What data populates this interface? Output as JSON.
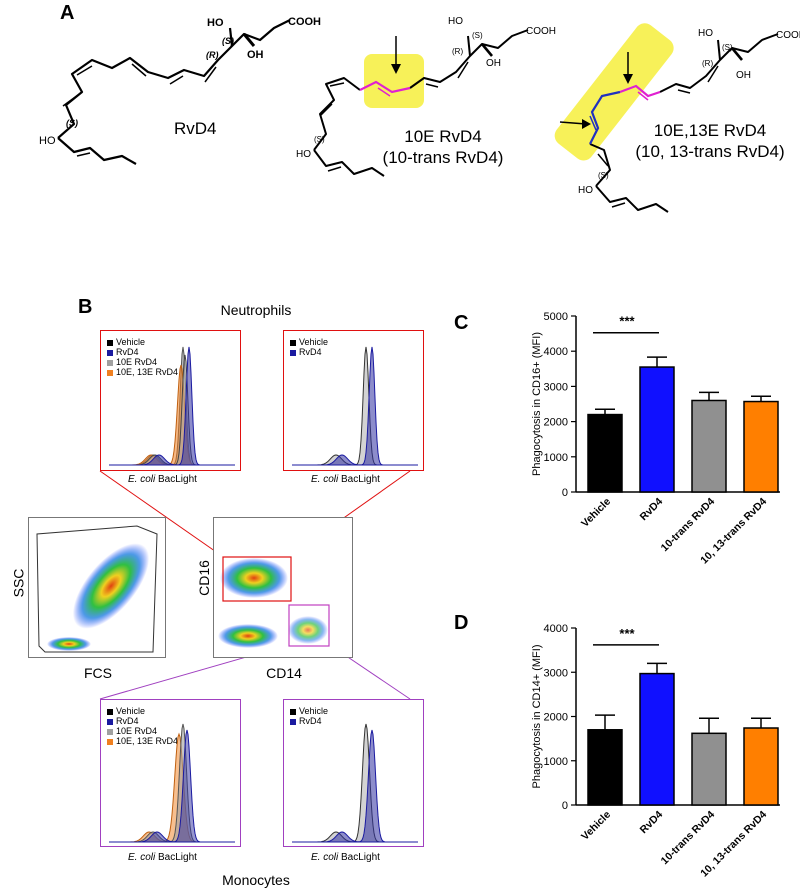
{
  "panels": {
    "A": "A",
    "B": "B",
    "C": "C",
    "D": "D"
  },
  "panel_a": {
    "compounds": [
      {
        "name_line1": "RvD4",
        "name_line2": ""
      },
      {
        "name_line1": "10E RvD4",
        "name_line2": "(10-trans RvD4)"
      },
      {
        "name_line1": "10E,13E RvD4",
        "name_line2": "(10, 13-trans RvD4)"
      }
    ],
    "groups": {
      "cooh": "COOH",
      "oh": "OH",
      "ho": "HO"
    },
    "stereo": {
      "S": "(S)",
      "R": "(R)"
    },
    "highlight_color": "#f6ee3c",
    "trans_bond_color_pink": "#e020d0",
    "trans_bond_color_blue": "#2030c0"
  },
  "panel_b": {
    "neutrophils_title": "Neutrophils",
    "monocytes_title": "Monocytes",
    "hist_xlabel_italic": "E. coli",
    "hist_xlabel_rest": " BacLight",
    "legend_full": [
      "Vehicle",
      "RvD4",
      "10E RvD4",
      "10E, 13E RvD4"
    ],
    "legend_short": [
      "Vehicle",
      "RvD4"
    ],
    "legend_colors": [
      "#000000",
      "#1a1aa0",
      "#a0a0a0",
      "#f08020"
    ],
    "scatter1": {
      "xlabel": "FCS",
      "ylabel": "SSC"
    },
    "scatter2": {
      "xlabel": "CD14",
      "ylabel": "CD16"
    },
    "gate_neutrophil_color": "#e01010",
    "gate_monocyte_color": "#c040c0"
  },
  "chart_data": [
    {
      "panel": "C",
      "type": "bar",
      "categories": [
        "Vehicle",
        "RvD4",
        "10-trans RvD4",
        "10, 13-trans RvD4"
      ],
      "values": [
        2200,
        3550,
        2600,
        2570
      ],
      "errors": [
        150,
        280,
        230,
        150
      ],
      "colors": [
        "#000000",
        "#1010ff",
        "#909090",
        "#ff7f00"
      ],
      "ylabel": "Phagocytosis in CD16+ (MFI)",
      "ylim": [
        0,
        5000
      ],
      "yticks": [
        0,
        1000,
        2000,
        3000,
        4000,
        5000
      ],
      "significance": "***"
    },
    {
      "panel": "D",
      "type": "bar",
      "categories": [
        "Vehicle",
        "RvD4",
        "10-trans RvD4",
        "10, 13-trans RvD4"
      ],
      "values": [
        1700,
        2970,
        1620,
        1740
      ],
      "errors": [
        330,
        230,
        340,
        220
      ],
      "colors": [
        "#000000",
        "#1010ff",
        "#909090",
        "#ff7f00"
      ],
      "ylabel": "Phagocytosis in CD14+ (MFI)",
      "ylim": [
        0,
        4000
      ],
      "yticks": [
        0,
        1000,
        2000,
        3000,
        4000
      ],
      "significance": "***"
    }
  ]
}
